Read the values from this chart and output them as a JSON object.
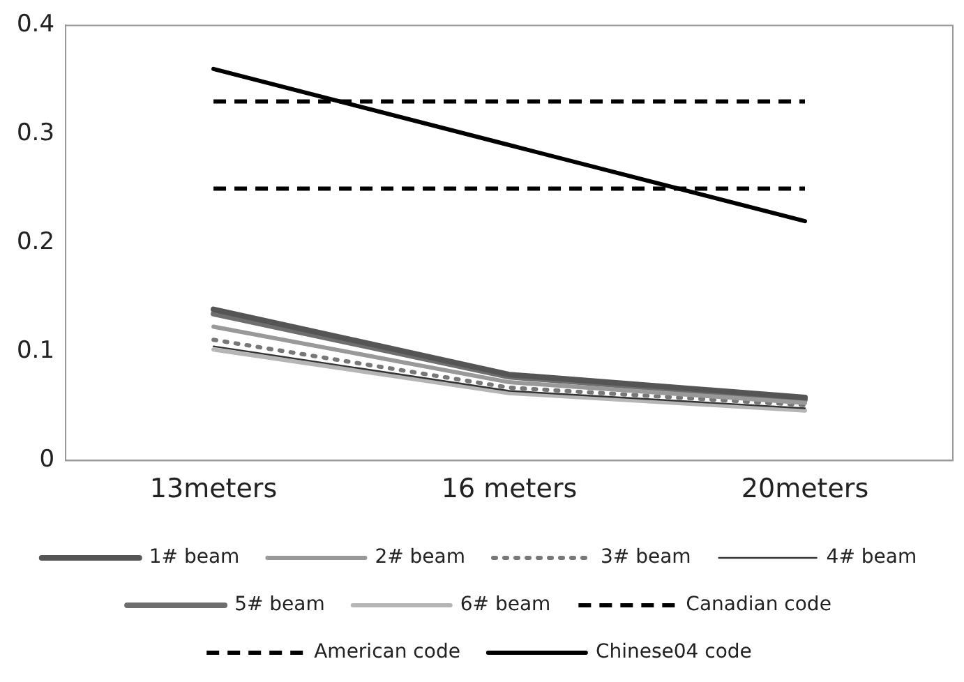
{
  "chart_data": {
    "type": "line",
    "categories": [
      "13meters",
      "16 meters",
      "20meters"
    ],
    "series": [
      {
        "name": "1# beam",
        "color": "#555555",
        "line_style": "solid",
        "values": [
          0.139,
          0.079,
          0.058
        ]
      },
      {
        "name": "2# beam",
        "color": "#999999",
        "line_style": "solid",
        "values": [
          0.123,
          0.072,
          0.053
        ]
      },
      {
        "name": "3# beam",
        "color": "#777777",
        "line_style": "dotted",
        "values": [
          0.111,
          0.067,
          0.051
        ]
      },
      {
        "name": "4# beam",
        "color": "#333333",
        "line_style": "solid",
        "values": [
          0.105,
          0.064,
          0.048
        ]
      },
      {
        "name": "5# beam",
        "color": "#6e6e6e",
        "line_style": "solid",
        "values": [
          0.135,
          0.077,
          0.056
        ]
      },
      {
        "name": "6# beam",
        "color": "#b5b5b5",
        "line_style": "solid",
        "values": [
          0.102,
          0.062,
          0.046
        ]
      },
      {
        "name": "Canadian code",
        "color": "#000000",
        "line_style": "dashed",
        "values": [
          0.25,
          0.25,
          0.25
        ]
      },
      {
        "name": "American code",
        "color": "#000000",
        "line_style": "dashed",
        "values": [
          0.33,
          0.33,
          0.33
        ]
      },
      {
        "name": "Chinese04 code",
        "color": "#000000",
        "line_style": "solid",
        "values": [
          0.36,
          0.29,
          0.22
        ]
      }
    ],
    "ylim": [
      0,
      0.4
    ],
    "yticks": [
      0,
      0.1,
      0.2,
      0.3,
      0.4
    ],
    "grid": false,
    "legend": "bottom",
    "marker": "none"
  }
}
